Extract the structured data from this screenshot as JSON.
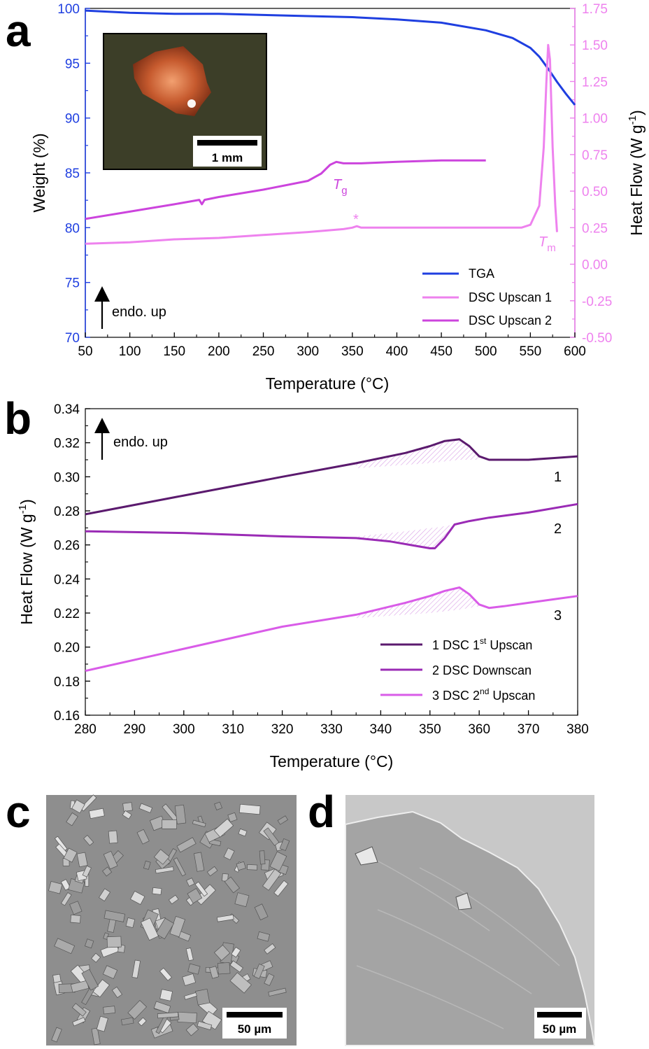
{
  "panel_labels": {
    "a": "a",
    "b": "b",
    "c": "c",
    "d": "d"
  },
  "colors": {
    "tga": "#1f3fe0",
    "dsc_up1_a": "#ee82ee",
    "dsc_up2_a": "#cc44dd",
    "b_s1": "#5b1a6e",
    "b_s2": "#9a2bb5",
    "b_s3": "#d95ce8",
    "hatch": "#d9a0e6"
  },
  "inset_photo": {
    "scale_label": "1 mm",
    "icon": "crystal-photo"
  },
  "sem_images": {
    "c": {
      "scale_label": "50  µm",
      "icon": "sem-crystals-image"
    },
    "d": {
      "scale_label": "50  µm",
      "icon": "sem-glass-image"
    }
  },
  "chart_data": [
    {
      "type": "line",
      "panel": "a",
      "xlabel": "Temperature (°C)",
      "ylabel": "Weight (%)",
      "y2label_main": "Heat Flow (W g",
      "y2label_sup": "-1",
      "y2label_end": ")",
      "xlim": [
        50,
        600
      ],
      "ylim": [
        70,
        100
      ],
      "y2lim": [
        -0.5,
        1.75
      ],
      "xticks": [
        50,
        100,
        150,
        200,
        250,
        300,
        350,
        400,
        450,
        500,
        550,
        600
      ],
      "yticks": [
        70,
        75,
        80,
        85,
        90,
        95,
        100
      ],
      "y2ticks": [
        "-0.50",
        "-0.25",
        "0.00",
        "0.25",
        "0.50",
        "0.75",
        "1.00",
        "1.25",
        "1.50",
        "1.75"
      ],
      "legend_position": "bottom-right",
      "annotations": {
        "endo": "endo. up",
        "tg_main": "T",
        "tg_sub": "g",
        "tm_main": "T",
        "tm_sub": "m",
        "star": "*"
      },
      "series": [
        {
          "name": "TGA",
          "axis": "left",
          "color": "#1f3fe0",
          "x": [
            50,
            100,
            150,
            200,
            250,
            300,
            350,
            400,
            450,
            500,
            530,
            550,
            560,
            570,
            580,
            590,
            600
          ],
          "y": [
            99.8,
            99.6,
            99.5,
            99.5,
            99.4,
            99.3,
            99.2,
            99.0,
            98.7,
            98.0,
            97.3,
            96.4,
            95.6,
            94.5,
            93.3,
            92.2,
            91.2
          ]
        },
        {
          "name": "DSC Upscan 1",
          "axis": "right",
          "color": "#ee82ee",
          "x": [
            50,
            100,
            150,
            200,
            250,
            300,
            340,
            350,
            355,
            360,
            400,
            450,
            500,
            540,
            550,
            560,
            565,
            568,
            570,
            572,
            575,
            578,
            580
          ],
          "y": [
            0.14,
            0.15,
            0.17,
            0.18,
            0.2,
            0.22,
            0.24,
            0.25,
            0.26,
            0.25,
            0.25,
            0.25,
            0.25,
            0.25,
            0.27,
            0.4,
            0.8,
            1.25,
            1.5,
            1.4,
            0.8,
            0.4,
            0.22
          ]
        },
        {
          "name": "DSC Upscan 2",
          "axis": "right",
          "color": "#cc44dd",
          "x": [
            50,
            100,
            150,
            178,
            181,
            184,
            200,
            250,
            300,
            315,
            325,
            332,
            340,
            360,
            400,
            450,
            500
          ],
          "y": [
            0.31,
            0.36,
            0.41,
            0.44,
            0.41,
            0.44,
            0.46,
            0.51,
            0.57,
            0.62,
            0.68,
            0.7,
            0.69,
            0.69,
            0.7,
            0.71,
            0.71
          ]
        }
      ]
    },
    {
      "type": "line",
      "panel": "b",
      "xlabel": "Temperature (°C)",
      "ylabel_main": "Heat Flow (W g",
      "ylabel_sup": "-1",
      "ylabel_end": ")",
      "xlim": [
        280,
        380
      ],
      "ylim": [
        0.16,
        0.34
      ],
      "xticks": [
        280,
        290,
        300,
        310,
        320,
        330,
        340,
        350,
        360,
        370,
        380
      ],
      "yticks": [
        "0.16",
        "0.18",
        "0.20",
        "0.22",
        "0.24",
        "0.26",
        "0.28",
        "0.30",
        "0.32",
        "0.34"
      ],
      "legend_position": "bottom-right",
      "annotations": {
        "endo": "endo. up",
        "curve1": "1",
        "curve2": "2",
        "curve3": "3"
      },
      "series": [
        {
          "name": "1 DSC 1",
          "name_sup": "st",
          "name_end": " Upscan",
          "color": "#5b1a6e",
          "x": [
            280,
            300,
            320,
            335,
            345,
            350,
            353,
            356,
            358,
            360,
            362,
            365,
            370,
            375,
            380
          ],
          "y": [
            0.278,
            0.289,
            0.3,
            0.308,
            0.314,
            0.318,
            0.321,
            0.322,
            0.318,
            0.312,
            0.31,
            0.31,
            0.31,
            0.311,
            0.312
          ],
          "hatch": {
            "x": [
              335,
              345,
              350,
              353,
              356,
              358,
              360
            ],
            "y_top": [
              0.308,
              0.314,
              0.318,
              0.321,
              0.322,
              0.318,
              0.312
            ],
            "y_base": [
              0.305,
              0.307,
              0.308,
              0.309,
              0.31,
              0.31,
              0.31
            ]
          }
        },
        {
          "name": "2 DSC Downscan",
          "color": "#9a2bb5",
          "x": [
            280,
            300,
            320,
            335,
            342,
            348,
            350,
            351,
            353,
            355,
            358,
            362,
            370,
            380
          ],
          "y": [
            0.268,
            0.267,
            0.265,
            0.264,
            0.262,
            0.259,
            0.258,
            0.258,
            0.264,
            0.272,
            0.274,
            0.276,
            0.279,
            0.284
          ],
          "hatch": {
            "x": [
              335,
              342,
              348,
              350,
              351,
              353,
              355
            ],
            "y_top": [
              0.265,
              0.267,
              0.269,
              0.27,
              0.27,
              0.271,
              0.272
            ],
            "y_base": [
              0.264,
              0.262,
              0.259,
              0.258,
              0.258,
              0.264,
              0.272
            ]
          }
        },
        {
          "name": "3 DSC 2",
          "name_sup": "nd",
          "name_end": " Upscan",
          "color": "#d95ce8",
          "x": [
            280,
            300,
            320,
            335,
            345,
            350,
            353,
            356,
            358,
            360,
            362,
            365,
            370,
            375,
            380
          ],
          "y": [
            0.186,
            0.199,
            0.212,
            0.219,
            0.226,
            0.23,
            0.233,
            0.235,
            0.231,
            0.225,
            0.223,
            0.224,
            0.226,
            0.228,
            0.23
          ],
          "hatch": {
            "x": [
              335,
              345,
              350,
              353,
              356,
              358,
              360
            ],
            "y_top": [
              0.219,
              0.226,
              0.23,
              0.233,
              0.235,
              0.231,
              0.225
            ],
            "y_base": [
              0.217,
              0.219,
              0.22,
              0.221,
              0.222,
              0.223,
              0.224
            ]
          }
        }
      ]
    }
  ]
}
